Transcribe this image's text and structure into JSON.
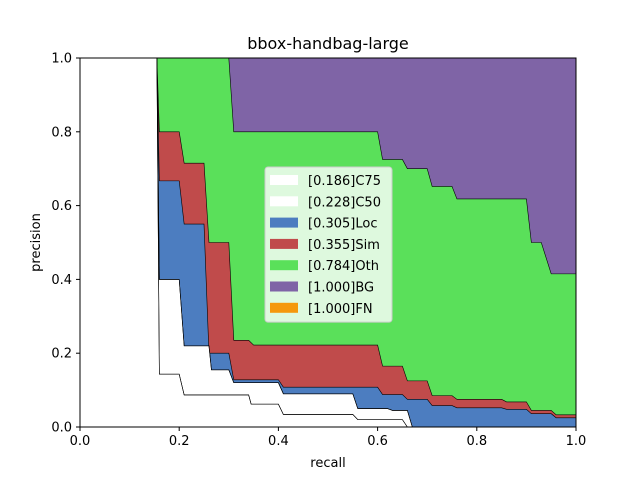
{
  "chart_data": {
    "type": "area",
    "title": "bbox-handbag-large",
    "xlabel": "recall",
    "ylabel": "precision",
    "xlim": [
      0,
      1
    ],
    "ylim": [
      0,
      1
    ],
    "xticks": [
      "0.0",
      "0.2",
      "0.4",
      "0.6",
      "0.8",
      "1.0"
    ],
    "yticks": [
      "0.0",
      "0.2",
      "0.4",
      "0.6",
      "0.8",
      "1.0"
    ],
    "legend_position": "center",
    "grid": false,
    "series": [
      {
        "name": "[0.186]C75",
        "color": "#ffffff",
        "points": [
          [
            0,
            1
          ],
          [
            0.155,
            1
          ],
          [
            0.16,
            0.143
          ],
          [
            0.2,
            0.143
          ],
          [
            0.21,
            0.087
          ],
          [
            0.34,
            0.087
          ],
          [
            0.345,
            0.062
          ],
          [
            0.4,
            0.062
          ],
          [
            0.41,
            0.034
          ],
          [
            0.55,
            0.034
          ],
          [
            0.56,
            0.02
          ],
          [
            0.65,
            0.02
          ],
          [
            0.66,
            0
          ],
          [
            1,
            0
          ]
        ]
      },
      {
        "name": "[0.228]C50",
        "color": "#ffffff",
        "points": [
          [
            0,
            1
          ],
          [
            0.155,
            1
          ],
          [
            0.16,
            0.4
          ],
          [
            0.2,
            0.4
          ],
          [
            0.21,
            0.22
          ],
          [
            0.26,
            0.22
          ],
          [
            0.265,
            0.155
          ],
          [
            0.3,
            0.155
          ],
          [
            0.31,
            0.12
          ],
          [
            0.4,
            0.12
          ],
          [
            0.41,
            0.09
          ],
          [
            0.55,
            0.09
          ],
          [
            0.56,
            0.05
          ],
          [
            0.62,
            0.05
          ],
          [
            0.63,
            0.045
          ],
          [
            0.66,
            0.045
          ],
          [
            0.67,
            0
          ],
          [
            1,
            0
          ]
        ]
      },
      {
        "name": "[0.305]Loc",
        "color": "#4c7dc0",
        "points": [
          [
            0,
            1
          ],
          [
            0.155,
            1
          ],
          [
            0.16,
            0.667
          ],
          [
            0.2,
            0.667
          ],
          [
            0.21,
            0.55
          ],
          [
            0.25,
            0.55
          ],
          [
            0.26,
            0.2
          ],
          [
            0.3,
            0.2
          ],
          [
            0.31,
            0.128
          ],
          [
            0.4,
            0.128
          ],
          [
            0.41,
            0.108
          ],
          [
            0.6,
            0.108
          ],
          [
            0.61,
            0.088
          ],
          [
            0.65,
            0.088
          ],
          [
            0.66,
            0.075
          ],
          [
            0.7,
            0.075
          ],
          [
            0.71,
            0.058
          ],
          [
            0.75,
            0.058
          ],
          [
            0.76,
            0.052
          ],
          [
            0.85,
            0.052
          ],
          [
            0.86,
            0.048
          ],
          [
            0.9,
            0.048
          ],
          [
            0.91,
            0.036
          ],
          [
            0.95,
            0.036
          ],
          [
            0.96,
            0.025
          ],
          [
            1,
            0.025
          ]
        ]
      },
      {
        "name": "[0.355]Sim",
        "color": "#c04b4b",
        "points": [
          [
            0,
            1
          ],
          [
            0.155,
            1
          ],
          [
            0.16,
            0.8
          ],
          [
            0.2,
            0.8
          ],
          [
            0.21,
            0.715
          ],
          [
            0.25,
            0.715
          ],
          [
            0.26,
            0.5
          ],
          [
            0.3,
            0.5
          ],
          [
            0.31,
            0.235
          ],
          [
            0.34,
            0.235
          ],
          [
            0.35,
            0.222
          ],
          [
            0.6,
            0.222
          ],
          [
            0.61,
            0.165
          ],
          [
            0.65,
            0.165
          ],
          [
            0.66,
            0.125
          ],
          [
            0.7,
            0.125
          ],
          [
            0.71,
            0.085
          ],
          [
            0.75,
            0.085
          ],
          [
            0.76,
            0.075
          ],
          [
            0.85,
            0.075
          ],
          [
            0.86,
            0.068
          ],
          [
            0.9,
            0.068
          ],
          [
            0.91,
            0.045
          ],
          [
            0.95,
            0.045
          ],
          [
            0.96,
            0.033
          ],
          [
            1,
            0.033
          ]
        ]
      },
      {
        "name": "[0.784]Oth",
        "color": "#5ae05a",
        "points": [
          [
            0,
            1
          ],
          [
            0.3,
            1
          ],
          [
            0.31,
            0.8
          ],
          [
            0.6,
            0.8
          ],
          [
            0.61,
            0.725
          ],
          [
            0.65,
            0.725
          ],
          [
            0.66,
            0.7
          ],
          [
            0.7,
            0.7
          ],
          [
            0.71,
            0.652
          ],
          [
            0.75,
            0.652
          ],
          [
            0.76,
            0.618
          ],
          [
            0.9,
            0.618
          ],
          [
            0.91,
            0.5
          ],
          [
            0.93,
            0.5
          ],
          [
            0.95,
            0.415
          ],
          [
            1,
            0.415
          ]
        ]
      },
      {
        "name": "[1.000]BG",
        "color": "#7f64a6",
        "points": [
          [
            0,
            1
          ],
          [
            1,
            1
          ]
        ]
      },
      {
        "name": "[1.000]FN",
        "color": "#f5980c",
        "points": [
          [
            0,
            1
          ],
          [
            1,
            1
          ]
        ]
      }
    ]
  }
}
